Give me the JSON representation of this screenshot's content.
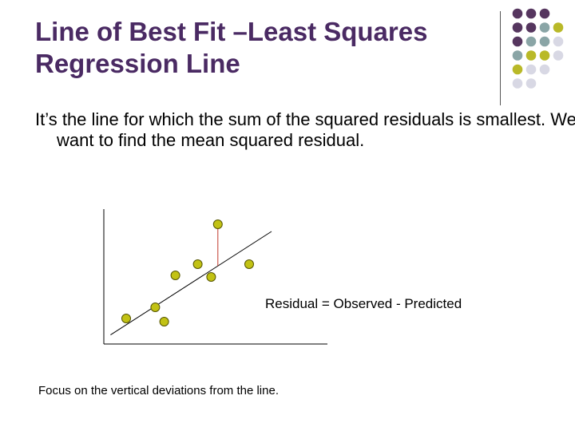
{
  "slide": {
    "title_lines": [
      "Line of Best Fit –Least Squares",
      "Regression Line"
    ],
    "body": "It’s the line for which the sum of the squared residuals is smallest.  We want to find the mean squared residual.",
    "residual_label": "Residual = Observed - Predicted",
    "focus_note": "Focus on the vertical deviations from the line."
  },
  "colors": {
    "title": "#4a2a63",
    "point_fill": "#c2c214",
    "point_stroke": "#555500",
    "residual_line": "#c0392b",
    "fit_line": "#000000",
    "dot_purple": "#56365f",
    "dot_teal": "#8aa5a6",
    "dot_olive": "#b9b928",
    "dot_lavender": "#d8d8e4"
  },
  "decoration": {
    "dot_grid": [
      [
        "purple",
        "purple",
        "purple",
        "none"
      ],
      [
        "purple",
        "purple",
        "teal",
        "olive"
      ],
      [
        "purple",
        "teal",
        "teal",
        "lavender"
      ],
      [
        "teal",
        "olive",
        "olive",
        "lavender"
      ],
      [
        "olive",
        "lavender",
        "lavender",
        "none"
      ],
      [
        "lavender",
        "lavender",
        "none",
        "none"
      ]
    ]
  },
  "chart_data": {
    "type": "scatter",
    "title": "",
    "xlabel": "",
    "ylabel": "",
    "points": [
      {
        "x": 1.0,
        "y": 1.6
      },
      {
        "x": 2.3,
        "y": 2.3
      },
      {
        "x": 2.7,
        "y": 1.4
      },
      {
        "x": 3.2,
        "y": 4.3
      },
      {
        "x": 4.2,
        "y": 5.0
      },
      {
        "x": 4.8,
        "y": 4.2
      },
      {
        "x": 5.1,
        "y": 7.5
      },
      {
        "x": 6.5,
        "y": 5.0
      }
    ],
    "fit_line": {
      "slope": 0.9,
      "intercept": 0.3
    },
    "residual_highlight_index": 6,
    "xlim": [
      0,
      10
    ],
    "ylim": [
      0,
      8.5
    ],
    "grid": false,
    "ticks": false
  }
}
